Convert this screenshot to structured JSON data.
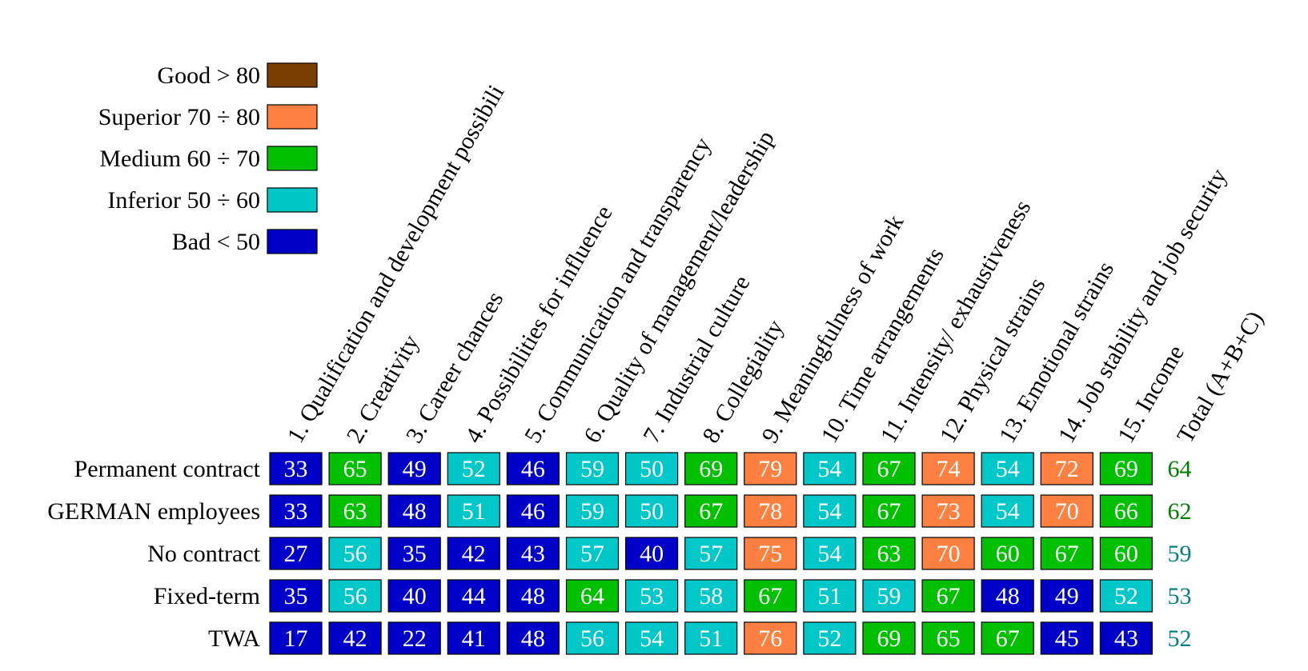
{
  "chart_data": {
    "type": "heatmap",
    "title": "",
    "legend_placement": "top-left",
    "legend": [
      {
        "label": "Good > 80",
        "color": "#7a3e00"
      },
      {
        "label": "Superior 70 ÷ 80",
        "color": "#ff8040"
      },
      {
        "label": "Medium 60 ÷ 70",
        "color": "#00c000"
      },
      {
        "label": "Inferior 50 ÷ 60",
        "color": "#00c8c8"
      },
      {
        "label": "Bad < 50",
        "color": "#0000c8"
      }
    ],
    "columns": [
      "1. Qualification and development possibili",
      "2. Creativity",
      "3. Career chances",
      "4. Possibilities for influence",
      "5. Communication and transparency",
      "6. Quality of management/leadership",
      "7. Industrial culture",
      "8. Collegiality",
      "9. Meaningfulness of work",
      "10. Time arrangements",
      "11. Intensity/ exhaustiveness",
      "12. Physical strains",
      "13. Emotional strains",
      "14. Job stability and job security",
      "15. Income"
    ],
    "total_label": "Total (A+B+C)",
    "rows": [
      {
        "label": "Permanent contract",
        "values": [
          33,
          65,
          49,
          52,
          46,
          59,
          50,
          69,
          79,
          54,
          67,
          74,
          54,
          72,
          69
        ],
        "total": 64
      },
      {
        "label": "GERMAN employees",
        "values": [
          33,
          63,
          48,
          51,
          46,
          59,
          50,
          67,
          78,
          54,
          67,
          73,
          54,
          70,
          66
        ],
        "total": 62
      },
      {
        "label": "No contract",
        "values": [
          27,
          56,
          35,
          42,
          43,
          57,
          40,
          57,
          75,
          54,
          63,
          70,
          60,
          67,
          60
        ],
        "total": 59
      },
      {
        "label": "Fixed-term",
        "values": [
          35,
          56,
          40,
          44,
          48,
          64,
          53,
          58,
          67,
          51,
          59,
          67,
          48,
          49,
          52
        ],
        "total": 53
      },
      {
        "label": "TWA",
        "values": [
          17,
          42,
          22,
          41,
          48,
          56,
          54,
          51,
          76,
          52,
          69,
          65,
          67,
          45,
          43
        ],
        "total": 52
      }
    ],
    "total_colors": {
      "medium": "#008000",
      "inferior": "#008080"
    }
  }
}
